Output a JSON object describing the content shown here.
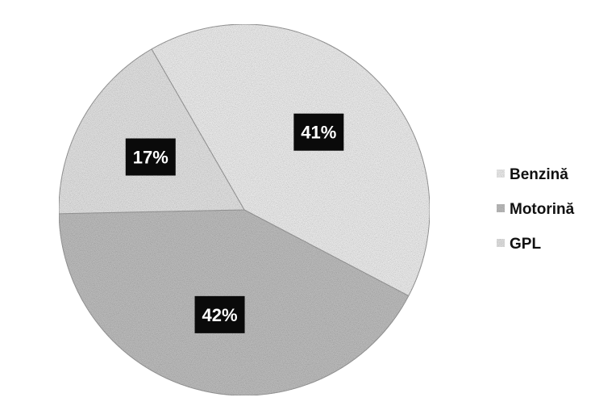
{
  "chart_data": {
    "type": "pie",
    "categories": [
      "Benzină",
      "Motorină",
      "GPL"
    ],
    "values": [
      41,
      42,
      17
    ],
    "value_labels": [
      "41%",
      "42%",
      "17%"
    ],
    "colors": [
      "#ececec",
      "#bdbdbd",
      "#e2e2e2"
    ],
    "start_angle_deg": -30,
    "direction": "clockwise",
    "legend_position": "right"
  }
}
